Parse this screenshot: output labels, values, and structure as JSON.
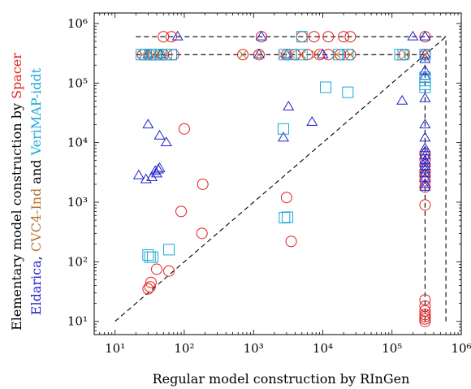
{
  "chart_data": {
    "type": "scatter",
    "log_x": true,
    "log_y": true,
    "xlim": [
      5,
      1000000
    ],
    "ylim": [
      6,
      1500000
    ],
    "x_ticks": [
      {
        "value": 10,
        "label": "10¹"
      },
      {
        "value": 100,
        "label": "10²"
      },
      {
        "value": 1000,
        "label": "10³"
      },
      {
        "value": 10000,
        "label": "10⁴"
      },
      {
        "value": 100000,
        "label": "10⁵"
      },
      {
        "value": 1000000,
        "label": "10⁶"
      }
    ],
    "y_ticks": [
      {
        "value": 10,
        "label": "10¹"
      },
      {
        "value": 100,
        "label": "10²"
      },
      {
        "value": 1000,
        "label": "10³"
      },
      {
        "value": 10000,
        "label": "10⁴"
      },
      {
        "value": 100000,
        "label": "10⁵"
      },
      {
        "value": 1000000,
        "label": "10⁶"
      }
    ],
    "xlabel": "Regular model construction by RInGen",
    "ylabel_parts": [
      {
        "text": "Eldarica",
        "color": "#2020cc"
      },
      {
        "text": ", ",
        "color": "#000000"
      },
      {
        "text": "CVC4-Ind",
        "color": "#b87333"
      },
      {
        "text": " and ",
        "color": "#000000"
      },
      {
        "text": "VeriMAP-iddt",
        "color": "#1aa7d9"
      }
    ],
    "ylabel_line1_parts": [
      {
        "text": "Elementary model construction by ",
        "color": "#000000"
      },
      {
        "text": "Spacer",
        "color": "#e02020"
      }
    ],
    "colors": {
      "spacer": "#e02020",
      "eldarica": "#2020cc",
      "cvc4": "#b87333",
      "verimap": "#1aa7d9"
    },
    "reference_lines": [
      {
        "style": "dashed",
        "points": [
          [
            10,
            10
          ],
          [
            600000,
            600000
          ]
        ]
      },
      {
        "style": "dashed",
        "points": [
          [
            600000,
            10
          ],
          [
            600000,
            600000
          ]
        ]
      },
      {
        "style": "dashed",
        "points": [
          [
            20,
            600000
          ],
          [
            600000,
            600000
          ]
        ]
      },
      {
        "style": "dashed",
        "points": [
          [
            20,
            300000
          ],
          [
            300000,
            300000
          ]
        ]
      },
      {
        "style": "dashed",
        "points": [
          [
            300000,
            10
          ],
          [
            300000,
            300000
          ]
        ]
      }
    ],
    "series": [
      {
        "name": "Spacer",
        "marker": "circle",
        "color": "#e02020",
        "points": [
          [
            30,
            35
          ],
          [
            32,
            38
          ],
          [
            33,
            45
          ],
          [
            40,
            75
          ],
          [
            60,
            70
          ],
          [
            90,
            700
          ],
          [
            100,
            17000
          ],
          [
            180,
            300
          ],
          [
            185,
            2000
          ],
          [
            3000,
            1200
          ],
          [
            3500,
            220
          ],
          [
            50,
            600000
          ],
          [
            65,
            600000
          ],
          [
            1300,
            600000
          ],
          [
            5000,
            600000
          ],
          [
            7500,
            600000
          ],
          [
            12000,
            600000
          ],
          [
            20000,
            600000
          ],
          [
            25000,
            600000
          ],
          [
            300000,
            600000
          ],
          [
            25,
            300000
          ],
          [
            35,
            300000
          ],
          [
            50,
            300000
          ],
          [
            70,
            300000
          ],
          [
            700,
            300000
          ],
          [
            1200,
            300000
          ],
          [
            3000,
            300000
          ],
          [
            4000,
            300000
          ],
          [
            6000,
            300000
          ],
          [
            9000,
            300000
          ],
          [
            12000,
            300000
          ],
          [
            18000,
            300000
          ],
          [
            25000,
            300000
          ],
          [
            150000,
            300000
          ],
          [
            300000,
            300000
          ],
          [
            300000,
            900
          ],
          [
            300000,
            1800
          ],
          [
            300000,
            2300
          ],
          [
            300000,
            2800
          ],
          [
            300000,
            3300
          ],
          [
            300000,
            4200
          ],
          [
            300000,
            5200
          ],
          [
            300000,
            6500
          ],
          [
            300000,
            10
          ],
          [
            300000,
            11
          ],
          [
            300000,
            12
          ],
          [
            300000,
            13
          ],
          [
            300000,
            15
          ],
          [
            300000,
            18
          ],
          [
            300000,
            23
          ]
        ]
      },
      {
        "name": "Eldarica",
        "marker": "triangle",
        "color": "#2020cc",
        "points": [
          [
            22,
            2800
          ],
          [
            28,
            2400
          ],
          [
            30,
            20000
          ],
          [
            34,
            2600
          ],
          [
            38,
            3300
          ],
          [
            40,
            3000
          ],
          [
            42,
            3500
          ],
          [
            44,
            13000
          ],
          [
            44,
            3700
          ],
          [
            55,
            10000
          ],
          [
            80,
            600000
          ],
          [
            1300,
            600000
          ],
          [
            2700,
            12000
          ],
          [
            3200,
            40000
          ],
          [
            7000,
            22000
          ],
          [
            140000,
            50000
          ],
          [
            200000,
            600000
          ],
          [
            300000,
            600000
          ],
          [
            30,
            300000
          ],
          [
            45,
            300000
          ],
          [
            1200,
            300000
          ],
          [
            3000,
            300000
          ],
          [
            10000,
            300000
          ],
          [
            300000,
            300000
          ],
          [
            300000,
            250000
          ],
          [
            300000,
            160000
          ],
          [
            300000,
            130000
          ],
          [
            300000,
            55000
          ],
          [
            300000,
            20000
          ],
          [
            300000,
            12000
          ],
          [
            300000,
            8000
          ],
          [
            300000,
            7000
          ],
          [
            300000,
            6000
          ],
          [
            300000,
            5000
          ],
          [
            300000,
            4500
          ],
          [
            300000,
            4000
          ],
          [
            300000,
            3500
          ],
          [
            300000,
            3000
          ],
          [
            300000,
            2500
          ],
          [
            300000,
            2000
          ],
          [
            300000,
            1800
          ]
        ]
      },
      {
        "name": "CVC4-Ind",
        "marker": "x",
        "color": "#b87333",
        "points": [
          [
            25,
            300000
          ],
          [
            30,
            300000
          ],
          [
            35,
            300000
          ],
          [
            40,
            300000
          ],
          [
            45,
            300000
          ],
          [
            55,
            300000
          ],
          [
            700,
            300000
          ],
          [
            1200,
            300000
          ],
          [
            2600,
            300000
          ],
          [
            3500,
            300000
          ],
          [
            5000,
            300000
          ],
          [
            8000,
            300000
          ],
          [
            16000,
            300000
          ],
          [
            25000,
            300000
          ],
          [
            160000,
            300000
          ],
          [
            300000,
            300000
          ]
        ]
      },
      {
        "name": "VeriMAP-iddt",
        "marker": "square",
        "color": "#1aa7d9",
        "points": [
          [
            30,
            130
          ],
          [
            32,
            120
          ],
          [
            35,
            120
          ],
          [
            60,
            160
          ],
          [
            2700,
            17000
          ],
          [
            2800,
            550
          ],
          [
            3100,
            560
          ],
          [
            11000,
            85000
          ],
          [
            23000,
            70000
          ],
          [
            5000,
            600000
          ],
          [
            24,
            300000
          ],
          [
            28,
            300000
          ],
          [
            32,
            300000
          ],
          [
            36,
            300000
          ],
          [
            40,
            300000
          ],
          [
            46,
            300000
          ],
          [
            55,
            300000
          ],
          [
            65,
            300000
          ],
          [
            2800,
            300000
          ],
          [
            3500,
            300000
          ],
          [
            5000,
            300000
          ],
          [
            17000,
            300000
          ],
          [
            23000,
            300000
          ],
          [
            130000,
            300000
          ],
          [
            145000,
            300000
          ],
          [
            300000,
            300000
          ],
          [
            300000,
            125000
          ],
          [
            300000,
            110000
          ],
          [
            300000,
            95000
          ],
          [
            300000,
            85000
          ]
        ]
      }
    ]
  }
}
